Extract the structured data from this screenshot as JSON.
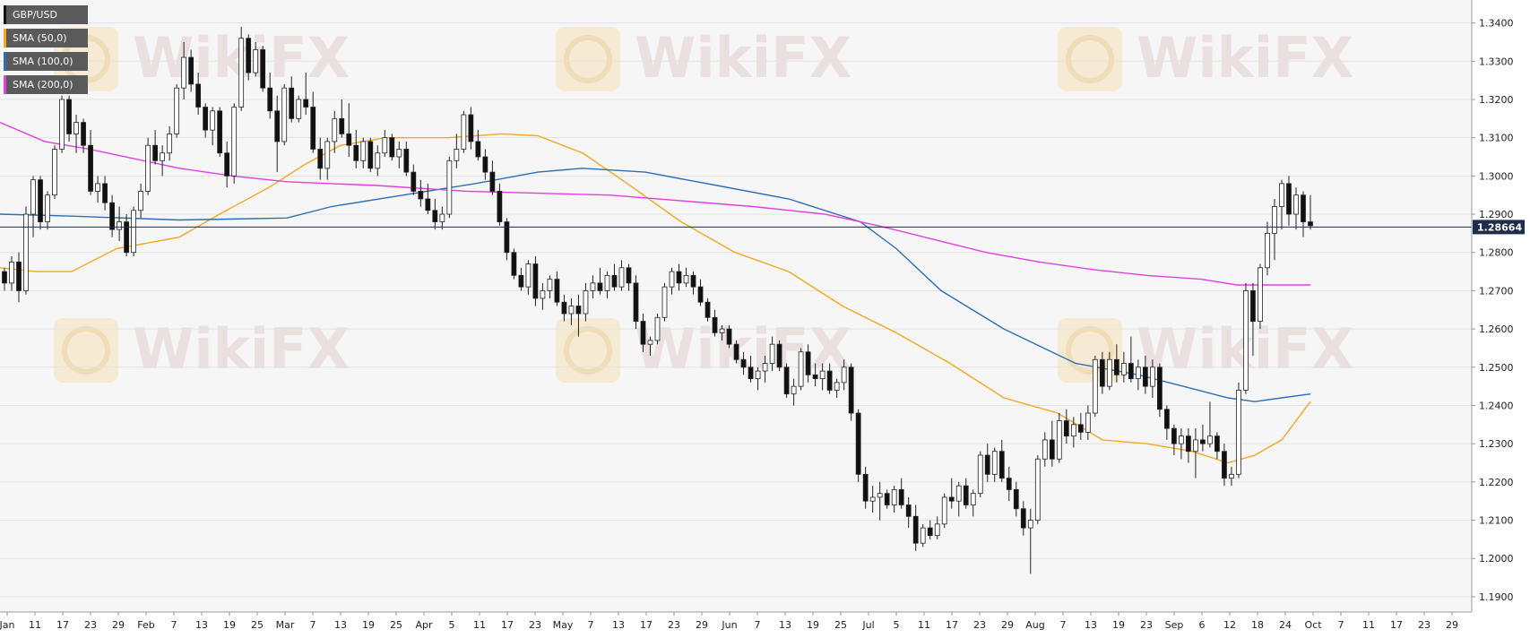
{
  "chart_data": {
    "type": "candlestick",
    "symbol": "GBP/USD",
    "current_price_label": "1.28664",
    "current_price": 1.28664,
    "ylim": [
      1.186,
      1.346
    ],
    "y_ticks": [
      "1.1900",
      "1.2000",
      "1.2100",
      "1.2200",
      "1.2300",
      "1.2400",
      "1.2500",
      "1.2600",
      "1.2700",
      "1.2800",
      "1.2900",
      "1.3000",
      "1.3100",
      "1.3200",
      "1.3300",
      "1.3400"
    ],
    "x_ticks": [
      "Jan",
      "11",
      "17",
      "23",
      "29",
      "Feb",
      "7",
      "13",
      "19",
      "25",
      "Mar",
      "7",
      "13",
      "19",
      "25",
      "Apr",
      "5",
      "11",
      "17",
      "23",
      "May",
      "7",
      "13",
      "17",
      "23",
      "29",
      "Jun",
      "7",
      "13",
      "19",
      "25",
      "Jul",
      "5",
      "11",
      "17",
      "23",
      "29",
      "Aug",
      "7",
      "13",
      "19",
      "23",
      "Sep",
      "6",
      "12",
      "18",
      "24",
      "Oct",
      "7",
      "11",
      "17",
      "23",
      "29"
    ],
    "legend": [
      {
        "label": "GBP/USD",
        "color": "#111111"
      },
      {
        "label": "SMA (50,0)",
        "color": "#f5a623"
      },
      {
        "label": "SMA (100,0)",
        "color": "#2f6eb5"
      },
      {
        "label": "SMA (200,0)",
        "color": "#e040e0"
      }
    ],
    "watermark": "WikiFX",
    "grid": true,
    "legend_placement": "top-left",
    "sma_50": [
      [
        0,
        1.276
      ],
      [
        40,
        1.275
      ],
      [
        80,
        1.275
      ],
      [
        130,
        1.281
      ],
      [
        200,
        1.284
      ],
      [
        245,
        1.29
      ],
      [
        300,
        1.297
      ],
      [
        340,
        1.303
      ],
      [
        380,
        1.308
      ],
      [
        430,
        1.31
      ],
      [
        500,
        1.31
      ],
      [
        560,
        1.311
      ],
      [
        600,
        1.3105
      ],
      [
        650,
        1.306
      ],
      [
        700,
        1.298
      ],
      [
        760,
        1.288
      ],
      [
        820,
        1.28
      ],
      [
        880,
        1.275
      ],
      [
        940,
        1.266
      ],
      [
        1000,
        1.259
      ],
      [
        1060,
        1.251
      ],
      [
        1120,
        1.242
      ],
      [
        1180,
        1.238
      ],
      [
        1230,
        1.231
      ],
      [
        1280,
        1.23
      ],
      [
        1330,
        1.228
      ],
      [
        1370,
        1.225
      ],
      [
        1400,
        1.227
      ],
      [
        1430,
        1.231
      ],
      [
        1462,
        1.241
      ]
    ],
    "sma_100": [
      [
        0,
        1.29
      ],
      [
        80,
        1.2895
      ],
      [
        200,
        1.2885
      ],
      [
        320,
        1.289
      ],
      [
        370,
        1.292
      ],
      [
        450,
        1.295
      ],
      [
        530,
        1.298
      ],
      [
        600,
        1.301
      ],
      [
        650,
        1.302
      ],
      [
        720,
        1.301
      ],
      [
        800,
        1.2975
      ],
      [
        880,
        1.294
      ],
      [
        960,
        1.288
      ],
      [
        1000,
        1.281
      ],
      [
        1050,
        1.27
      ],
      [
        1120,
        1.26
      ],
      [
        1200,
        1.251
      ],
      [
        1270,
        1.248
      ],
      [
        1320,
        1.245
      ],
      [
        1370,
        1.242
      ],
      [
        1400,
        1.241
      ],
      [
        1430,
        1.242
      ],
      [
        1462,
        1.243
      ]
    ],
    "sma_200": [
      [
        0,
        1.314
      ],
      [
        50,
        1.309
      ],
      [
        100,
        1.307
      ],
      [
        150,
        1.3045
      ],
      [
        200,
        1.302
      ],
      [
        260,
        1.3
      ],
      [
        320,
        1.2985
      ],
      [
        420,
        1.2975
      ],
      [
        520,
        1.296
      ],
      [
        600,
        1.2955
      ],
      [
        680,
        1.295
      ],
      [
        760,
        1.2935
      ],
      [
        840,
        1.292
      ],
      [
        920,
        1.29
      ],
      [
        980,
        1.287
      ],
      [
        1040,
        1.2835
      ],
      [
        1100,
        1.28
      ],
      [
        1160,
        1.2775
      ],
      [
        1220,
        1.2755
      ],
      [
        1280,
        1.274
      ],
      [
        1340,
        1.273
      ],
      [
        1380,
        1.2715
      ],
      [
        1420,
        1.2715
      ],
      [
        1462,
        1.2715
      ]
    ],
    "candles": [
      [
        1.275,
        1.276,
        1.27,
        1.272
      ],
      [
        1.272,
        1.279,
        1.27,
        1.2775
      ],
      [
        1.2775,
        1.28,
        1.267,
        1.27
      ],
      [
        1.27,
        1.292,
        1.269,
        1.29
      ],
      [
        1.29,
        1.3,
        1.284,
        1.299
      ],
      [
        1.299,
        1.3,
        1.286,
        1.288
      ],
      [
        1.288,
        1.296,
        1.286,
        1.295
      ],
      [
        1.295,
        1.308,
        1.294,
        1.307
      ],
      [
        1.307,
        1.321,
        1.306,
        1.32
      ],
      [
        1.32,
        1.321,
        1.309,
        1.311
      ],
      [
        1.311,
        1.316,
        1.306,
        1.314
      ],
      [
        1.314,
        1.315,
        1.306,
        1.308
      ],
      [
        1.308,
        1.312,
        1.295,
        1.296
      ],
      [
        1.296,
        1.3,
        1.293,
        1.298
      ],
      [
        1.298,
        1.3,
        1.291,
        1.293
      ],
      [
        1.293,
        1.295,
        1.284,
        1.286
      ],
      [
        1.286,
        1.292,
        1.283,
        1.288
      ],
      [
        1.288,
        1.29,
        1.279,
        1.28
      ],
      [
        1.28,
        1.292,
        1.279,
        1.291
      ],
      [
        1.291,
        1.298,
        1.289,
        1.296
      ],
      [
        1.296,
        1.31,
        1.295,
        1.308
      ],
      [
        1.308,
        1.312,
        1.303,
        1.304
      ],
      [
        1.304,
        1.308,
        1.3,
        1.306
      ],
      [
        1.306,
        1.313,
        1.304,
        1.311
      ],
      [
        1.311,
        1.324,
        1.31,
        1.323
      ],
      [
        1.323,
        1.335,
        1.32,
        1.331
      ],
      [
        1.331,
        1.333,
        1.322,
        1.324
      ],
      [
        1.324,
        1.327,
        1.316,
        1.318
      ],
      [
        1.318,
        1.319,
        1.31,
        1.312
      ],
      [
        1.312,
        1.318,
        1.308,
        1.317
      ],
      [
        1.317,
        1.318,
        1.305,
        1.306
      ],
      [
        1.306,
        1.309,
        1.297,
        1.3
      ],
      [
        1.3,
        1.319,
        1.298,
        1.318
      ],
      [
        1.318,
        1.339,
        1.317,
        1.336
      ],
      [
        1.336,
        1.337,
        1.325,
        1.327
      ],
      [
        1.327,
        1.335,
        1.326,
        1.333
      ],
      [
        1.333,
        1.334,
        1.322,
        1.323
      ],
      [
        1.323,
        1.327,
        1.315,
        1.317
      ],
      [
        1.317,
        1.321,
        1.301,
        1.309
      ],
      [
        1.309,
        1.324,
        1.308,
        1.323
      ],
      [
        1.323,
        1.326,
        1.314,
        1.315
      ],
      [
        1.315,
        1.321,
        1.314,
        1.32
      ],
      [
        1.32,
        1.327,
        1.316,
        1.318
      ],
      [
        1.318,
        1.322,
        1.306,
        1.307
      ],
      [
        1.307,
        1.31,
        1.299,
        1.302
      ],
      [
        1.302,
        1.31,
        1.299,
        1.309
      ],
      [
        1.309,
        1.317,
        1.306,
        1.315
      ],
      [
        1.315,
        1.32,
        1.31,
        1.311
      ],
      [
        1.311,
        1.319,
        1.305,
        1.308
      ],
      [
        1.308,
        1.312,
        1.302,
        1.304
      ],
      [
        1.304,
        1.31,
        1.302,
        1.309
      ],
      [
        1.309,
        1.31,
        1.301,
        1.302
      ],
      [
        1.302,
        1.308,
        1.3,
        1.306
      ],
      [
        1.306,
        1.312,
        1.305,
        1.31
      ],
      [
        1.31,
        1.311,
        1.304,
        1.305
      ],
      [
        1.305,
        1.309,
        1.302,
        1.307
      ],
      [
        1.307,
        1.309,
        1.3,
        1.301
      ],
      [
        1.301,
        1.303,
        1.295,
        1.296
      ],
      [
        1.296,
        1.299,
        1.292,
        1.294
      ],
      [
        1.294,
        1.298,
        1.29,
        1.291
      ],
      [
        1.291,
        1.294,
        1.286,
        1.288
      ],
      [
        1.288,
        1.292,
        1.286,
        1.29
      ],
      [
        1.29,
        1.305,
        1.289,
        1.304
      ],
      [
        1.304,
        1.311,
        1.302,
        1.307
      ],
      [
        1.307,
        1.317,
        1.306,
        1.316
      ],
      [
        1.316,
        1.318,
        1.307,
        1.309
      ],
      [
        1.309,
        1.312,
        1.304,
        1.305
      ],
      [
        1.305,
        1.307,
        1.299,
        1.301
      ],
      [
        1.301,
        1.304,
        1.295,
        1.296
      ],
      [
        1.296,
        1.298,
        1.287,
        1.288
      ],
      [
        1.288,
        1.289,
        1.278,
        1.28
      ],
      [
        1.28,
        1.281,
        1.273,
        1.274
      ],
      [
        1.274,
        1.276,
        1.27,
        1.271
      ],
      [
        1.271,
        1.278,
        1.269,
        1.277
      ],
      [
        1.277,
        1.279,
        1.266,
        1.268
      ],
      [
        1.268,
        1.272,
        1.265,
        1.27
      ],
      [
        1.27,
        1.274,
        1.268,
        1.273
      ],
      [
        1.273,
        1.275,
        1.266,
        1.267
      ],
      [
        1.267,
        1.269,
        1.262,
        1.264
      ],
      [
        1.264,
        1.268,
        1.261,
        1.266
      ],
      [
        1.266,
        1.269,
        1.258,
        1.264
      ],
      [
        1.264,
        1.272,
        1.262,
        1.27
      ],
      [
        1.27,
        1.274,
        1.268,
        1.272
      ],
      [
        1.272,
        1.276,
        1.269,
        1.27
      ],
      [
        1.27,
        1.275,
        1.268,
        1.274
      ],
      [
        1.274,
        1.277,
        1.27,
        1.271
      ],
      [
        1.271,
        1.278,
        1.27,
        1.276
      ],
      [
        1.276,
        1.277,
        1.27,
        1.272
      ],
      [
        1.272,
        1.274,
        1.26,
        1.262
      ],
      [
        1.262,
        1.264,
        1.254,
        1.256
      ],
      [
        1.256,
        1.258,
        1.253,
        1.257
      ],
      [
        1.257,
        1.264,
        1.256,
        1.263
      ],
      [
        1.263,
        1.272,
        1.262,
        1.271
      ],
      [
        1.271,
        1.276,
        1.269,
        1.275
      ],
      [
        1.275,
        1.277,
        1.27,
        1.272
      ],
      [
        1.272,
        1.276,
        1.271,
        1.274
      ],
      [
        1.274,
        1.275,
        1.269,
        1.271
      ],
      [
        1.271,
        1.273,
        1.266,
        1.267
      ],
      [
        1.267,
        1.268,
        1.262,
        1.263
      ],
      [
        1.263,
        1.265,
        1.258,
        1.259
      ],
      [
        1.259,
        1.261,
        1.257,
        1.26
      ],
      [
        1.26,
        1.261,
        1.255,
        1.256
      ],
      [
        1.256,
        1.257,
        1.251,
        1.252
      ],
      [
        1.252,
        1.254,
        1.248,
        1.25
      ],
      [
        1.25,
        1.253,
        1.246,
        1.247
      ],
      [
        1.247,
        1.25,
        1.244,
        1.249
      ],
      [
        1.249,
        1.253,
        1.246,
        1.251
      ],
      [
        1.251,
        1.258,
        1.249,
        1.256
      ],
      [
        1.256,
        1.257,
        1.249,
        1.25
      ],
      [
        1.25,
        1.251,
        1.242,
        1.243
      ],
      [
        1.243,
        1.247,
        1.24,
        1.245
      ],
      [
        1.245,
        1.255,
        1.244,
        1.254
      ],
      [
        1.254,
        1.256,
        1.246,
        1.248
      ],
      [
        1.248,
        1.251,
        1.245,
        1.247
      ],
      [
        1.247,
        1.251,
        1.244,
        1.249
      ],
      [
        1.249,
        1.251,
        1.243,
        1.244
      ],
      [
        1.244,
        1.247,
        1.242,
        1.246
      ],
      [
        1.246,
        1.252,
        1.244,
        1.25
      ],
      [
        1.25,
        1.251,
        1.236,
        1.238
      ],
      [
        1.238,
        1.239,
        1.22,
        1.222
      ],
      [
        1.222,
        1.224,
        1.213,
        1.215
      ],
      [
        1.215,
        1.219,
        1.212,
        1.216
      ],
      [
        1.216,
        1.22,
        1.21,
        1.217
      ],
      [
        1.217,
        1.218,
        1.213,
        1.214
      ],
      [
        1.214,
        1.219,
        1.212,
        1.218
      ],
      [
        1.218,
        1.221,
        1.213,
        1.214
      ],
      [
        1.214,
        1.216,
        1.208,
        1.211
      ],
      [
        1.211,
        1.214,
        1.202,
        1.204
      ],
      [
        1.204,
        1.209,
        1.203,
        1.208
      ],
      [
        1.208,
        1.21,
        1.205,
        1.206
      ],
      [
        1.206,
        1.211,
        1.205,
        1.209
      ],
      [
        1.209,
        1.217,
        1.208,
        1.216
      ],
      [
        1.216,
        1.221,
        1.213,
        1.215
      ],
      [
        1.215,
        1.22,
        1.211,
        1.219
      ],
      [
        1.219,
        1.221,
        1.213,
        1.214
      ],
      [
        1.214,
        1.218,
        1.211,
        1.217
      ],
      [
        1.217,
        1.228,
        1.216,
        1.227
      ],
      [
        1.227,
        1.23,
        1.22,
        1.222
      ],
      [
        1.222,
        1.229,
        1.22,
        1.228
      ],
      [
        1.228,
        1.231,
        1.22,
        1.221
      ],
      [
        1.221,
        1.224,
        1.215,
        1.218
      ],
      [
        1.218,
        1.22,
        1.211,
        1.213
      ],
      [
        1.213,
        1.215,
        1.206,
        1.208
      ],
      [
        1.208,
        1.213,
        1.196,
        1.21
      ],
      [
        1.21,
        1.227,
        1.209,
        1.226
      ],
      [
        1.226,
        1.233,
        1.224,
        1.231
      ],
      [
        1.231,
        1.236,
        1.224,
        1.226
      ],
      [
        1.226,
        1.238,
        1.225,
        1.236
      ],
      [
        1.236,
        1.239,
        1.23,
        1.232
      ],
      [
        1.232,
        1.237,
        1.229,
        1.235
      ],
      [
        1.235,
        1.238,
        1.231,
        1.233
      ],
      [
        1.233,
        1.24,
        1.231,
        1.238
      ],
      [
        1.238,
        1.253,
        1.237,
        1.252
      ],
      [
        1.252,
        1.254,
        1.243,
        1.245
      ],
      [
        1.245,
        1.254,
        1.244,
        1.252
      ],
      [
        1.252,
        1.256,
        1.246,
        1.248
      ],
      [
        1.248,
        1.254,
        1.246,
        1.251
      ],
      [
        1.251,
        1.258,
        1.246,
        1.247
      ],
      [
        1.247,
        1.252,
        1.244,
        1.25
      ],
      [
        1.25,
        1.253,
        1.243,
        1.245
      ],
      [
        1.245,
        1.252,
        1.242,
        1.25
      ],
      [
        1.25,
        1.251,
        1.237,
        1.239
      ],
      [
        1.239,
        1.24,
        1.231,
        1.234
      ],
      [
        1.234,
        1.235,
        1.227,
        1.23
      ],
      [
        1.23,
        1.234,
        1.226,
        1.232
      ],
      [
        1.232,
        1.234,
        1.225,
        1.228
      ],
      [
        1.228,
        1.234,
        1.221,
        1.231
      ],
      [
        1.231,
        1.235,
        1.228,
        1.23
      ],
      [
        1.23,
        1.241,
        1.229,
        1.232
      ],
      [
        1.232,
        1.233,
        1.226,
        1.228
      ],
      [
        1.228,
        1.23,
        1.219,
        1.221
      ],
      [
        1.221,
        1.224,
        1.219,
        1.222
      ],
      [
        1.222,
        1.246,
        1.221,
        1.244
      ],
      [
        1.244,
        1.272,
        1.243,
        1.27
      ],
      [
        1.27,
        1.272,
        1.253,
        1.262
      ],
      [
        1.262,
        1.277,
        1.26,
        1.276
      ],
      [
        1.276,
        1.288,
        1.274,
        1.285
      ],
      [
        1.285,
        1.294,
        1.278,
        1.292
      ],
      [
        1.292,
        1.299,
        1.286,
        1.298
      ],
      [
        1.298,
        1.3,
        1.287,
        1.29
      ],
      [
        1.29,
        1.297,
        1.286,
        1.295
      ],
      [
        1.295,
        1.296,
        1.284,
        1.288
      ],
      [
        1.288,
        1.295,
        1.286,
        1.287
      ]
    ]
  }
}
